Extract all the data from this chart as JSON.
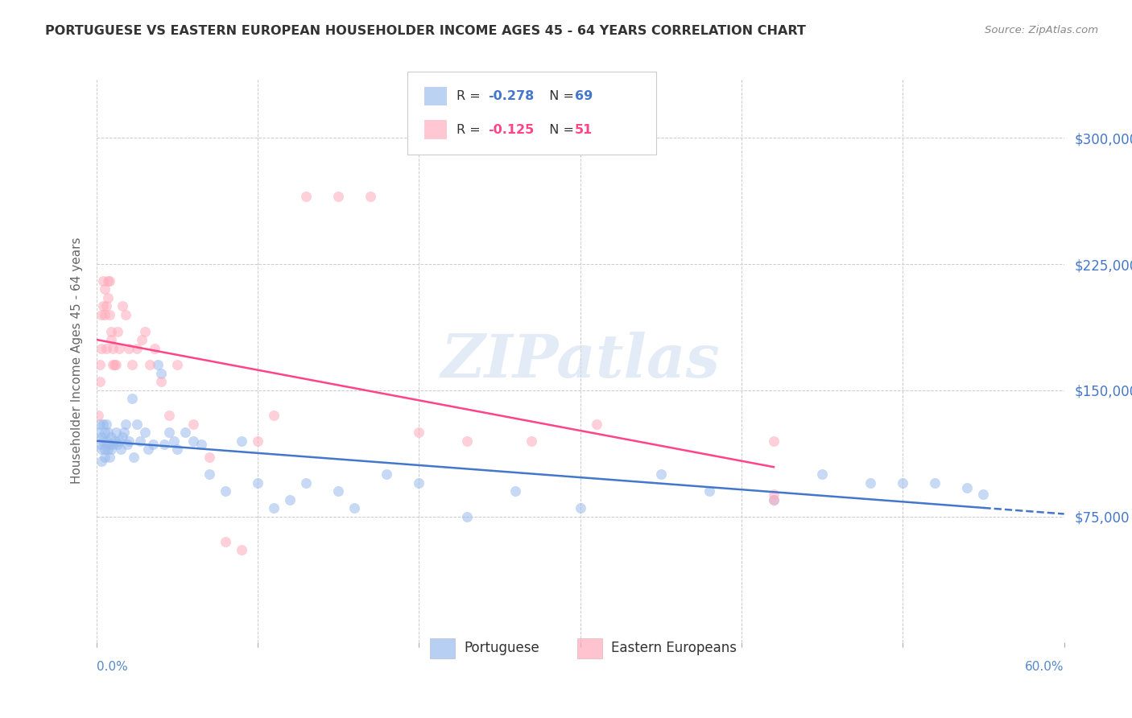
{
  "title": "PORTUGUESE VS EASTERN EUROPEAN HOUSEHOLDER INCOME AGES 45 - 64 YEARS CORRELATION CHART",
  "source": "Source: ZipAtlas.com",
  "ylabel": "Householder Income Ages 45 - 64 years",
  "watermark": "ZIPatlas",
  "ytick_values": [
    75000,
    150000,
    225000,
    300000
  ],
  "xlim": [
    0.0,
    0.6
  ],
  "ylim": [
    0,
    335000
  ],
  "portuguese_color": "#99BBEE",
  "eastern_color": "#FFAABB",
  "portuguese_line_color": "#4477CC",
  "eastern_line_color": "#FF4488",
  "R_port": -0.278,
  "N_port": 69,
  "R_east": -0.125,
  "N_east": 51,
  "marker_size": 80,
  "portuguese_x": [
    0.001,
    0.002,
    0.002,
    0.003,
    0.003,
    0.003,
    0.004,
    0.004,
    0.005,
    0.005,
    0.005,
    0.006,
    0.006,
    0.007,
    0.007,
    0.008,
    0.008,
    0.009,
    0.009,
    0.01,
    0.011,
    0.012,
    0.013,
    0.014,
    0.015,
    0.016,
    0.017,
    0.018,
    0.019,
    0.02,
    0.022,
    0.023,
    0.025,
    0.027,
    0.03,
    0.032,
    0.035,
    0.038,
    0.04,
    0.042,
    0.045,
    0.048,
    0.05,
    0.055,
    0.06,
    0.065,
    0.07,
    0.08,
    0.09,
    0.1,
    0.11,
    0.12,
    0.13,
    0.15,
    0.16,
    0.18,
    0.2,
    0.23,
    0.26,
    0.3,
    0.35,
    0.38,
    0.42,
    0.45,
    0.48,
    0.5,
    0.52,
    0.54,
    0.55
  ],
  "portuguese_y": [
    125000,
    130000,
    118000,
    122000,
    115000,
    108000,
    130000,
    120000,
    125000,
    115000,
    110000,
    130000,
    120000,
    125000,
    115000,
    118000,
    110000,
    122000,
    115000,
    118000,
    120000,
    125000,
    118000,
    120000,
    115000,
    122000,
    125000,
    130000,
    118000,
    120000,
    145000,
    110000,
    130000,
    120000,
    125000,
    115000,
    118000,
    165000,
    160000,
    118000,
    125000,
    120000,
    115000,
    125000,
    120000,
    118000,
    100000,
    90000,
    120000,
    95000,
    80000,
    85000,
    95000,
    90000,
    80000,
    100000,
    95000,
    75000,
    90000,
    80000,
    100000,
    90000,
    85000,
    100000,
    95000,
    95000,
    95000,
    92000,
    88000
  ],
  "eastern_x": [
    0.001,
    0.002,
    0.002,
    0.003,
    0.003,
    0.004,
    0.004,
    0.005,
    0.005,
    0.006,
    0.006,
    0.007,
    0.007,
    0.008,
    0.008,
    0.009,
    0.009,
    0.01,
    0.01,
    0.011,
    0.012,
    0.013,
    0.014,
    0.016,
    0.018,
    0.02,
    0.022,
    0.025,
    0.028,
    0.03,
    0.033,
    0.036,
    0.04,
    0.045,
    0.05,
    0.06,
    0.07,
    0.08,
    0.09,
    0.1,
    0.11,
    0.13,
    0.15,
    0.17,
    0.2,
    0.23,
    0.27,
    0.31,
    0.42,
    0.42,
    0.42
  ],
  "eastern_y": [
    135000,
    155000,
    165000,
    175000,
    195000,
    200000,
    215000,
    210000,
    195000,
    200000,
    175000,
    215000,
    205000,
    215000,
    195000,
    185000,
    180000,
    165000,
    175000,
    165000,
    165000,
    185000,
    175000,
    200000,
    195000,
    175000,
    165000,
    175000,
    180000,
    185000,
    165000,
    175000,
    155000,
    135000,
    165000,
    130000,
    110000,
    60000,
    55000,
    120000,
    135000,
    265000,
    265000,
    265000,
    125000,
    120000,
    120000,
    130000,
    85000,
    120000,
    88000
  ]
}
